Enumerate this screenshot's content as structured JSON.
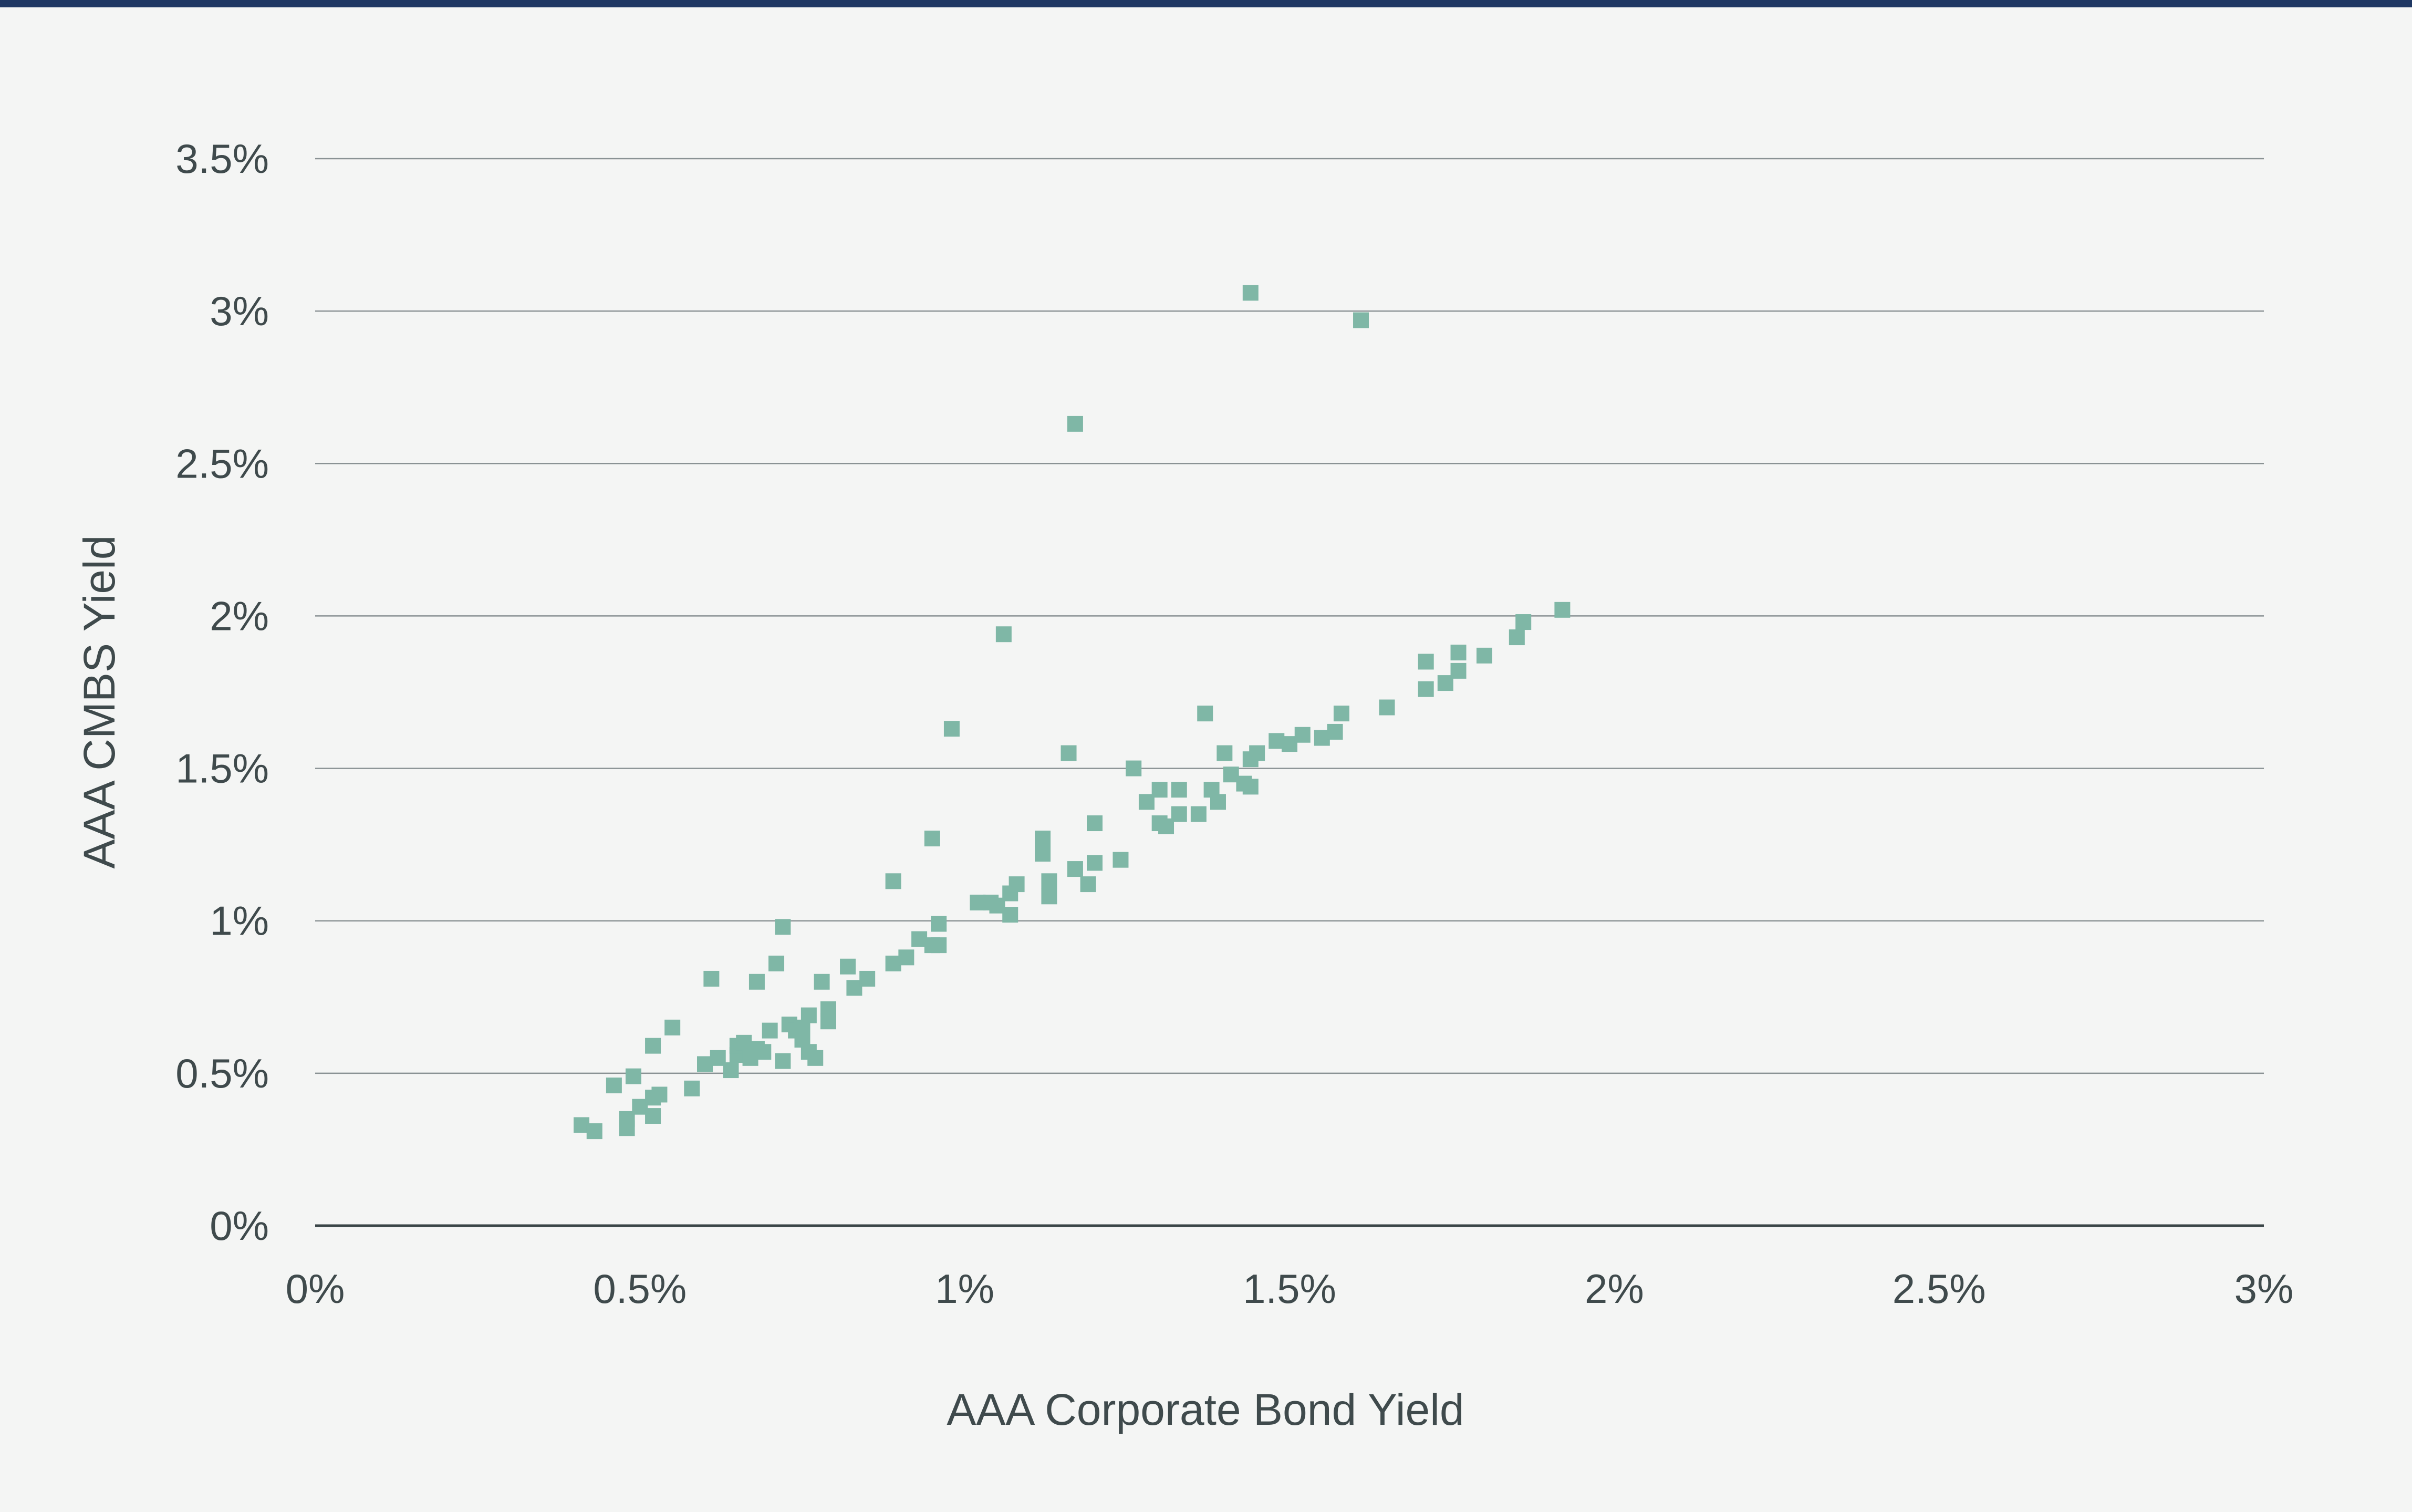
{
  "chart_data": {
    "type": "scatter",
    "title": "",
    "xlabel": "AAA Corporate Bond Yield",
    "ylabel": "AAA CMBS Yield",
    "xlim": [
      0,
      3
    ],
    "ylim": [
      0,
      3.5
    ],
    "x_ticks": [
      0,
      0.5,
      1,
      1.5,
      2,
      2.5,
      3
    ],
    "y_ticks": [
      0,
      0.5,
      1,
      1.5,
      2,
      2.5,
      3,
      3.5
    ],
    "x_tick_labels": [
      "0%",
      "0.5%",
      "1%",
      "1.5%",
      "2%",
      "2.5%",
      "3%"
    ],
    "y_tick_labels": [
      "0%",
      "0.5%",
      "1%",
      "1.5%",
      "2%",
      "2.5%",
      "3%",
      "3.5%"
    ],
    "grid": "horizontal",
    "legend": "none",
    "colors": {
      "marker": "#7fb7a6",
      "top_rule": "#1f3763",
      "gridline": "#8a9294",
      "baseline": "#3a4547",
      "text": "#3f4a4c",
      "background": "#f4f5f4"
    },
    "series": [
      {
        "marker": "square",
        "points": [
          [
            0.41,
            0.33
          ],
          [
            0.43,
            0.31
          ],
          [
            0.46,
            0.46
          ],
          [
            0.48,
            0.32
          ],
          [
            0.48,
            0.35
          ],
          [
            0.49,
            0.49
          ],
          [
            0.5,
            0.39
          ],
          [
            0.52,
            0.36
          ],
          [
            0.52,
            0.42
          ],
          [
            0.53,
            0.43
          ],
          [
            0.52,
            0.59
          ],
          [
            0.55,
            0.65
          ],
          [
            0.58,
            0.45
          ],
          [
            0.6,
            0.53
          ],
          [
            0.61,
            0.81
          ],
          [
            0.62,
            0.55
          ],
          [
            0.64,
            0.51
          ],
          [
            0.65,
            0.56
          ],
          [
            0.65,
            0.59
          ],
          [
            0.66,
            0.6
          ],
          [
            0.67,
            0.55
          ],
          [
            0.68,
            0.58
          ],
          [
            0.68,
            0.8
          ],
          [
            0.69,
            0.57
          ],
          [
            0.7,
            0.64
          ],
          [
            0.71,
            0.86
          ],
          [
            0.72,
            0.54
          ],
          [
            0.72,
            0.98
          ],
          [
            0.73,
            0.66
          ],
          [
            0.74,
            0.64
          ],
          [
            0.75,
            0.61
          ],
          [
            0.75,
            0.65
          ],
          [
            0.76,
            0.57
          ],
          [
            0.76,
            0.69
          ],
          [
            0.77,
            0.55
          ],
          [
            0.78,
            0.8
          ],
          [
            0.79,
            0.71
          ],
          [
            0.79,
            0.67
          ],
          [
            0.82,
            0.85
          ],
          [
            0.83,
            0.78
          ],
          [
            0.85,
            0.81
          ],
          [
            0.89,
            1.13
          ],
          [
            0.89,
            0.86
          ],
          [
            0.91,
            0.88
          ],
          [
            0.93,
            0.94
          ],
          [
            0.95,
            0.92
          ],
          [
            0.95,
            1.27
          ],
          [
            0.96,
            0.92
          ],
          [
            0.96,
            0.99
          ],
          [
            0.98,
            1.63
          ],
          [
            1.02,
            1.06
          ],
          [
            1.04,
            1.06
          ],
          [
            1.05,
            1.05
          ],
          [
            1.06,
            1.94
          ],
          [
            1.07,
            1.02
          ],
          [
            1.07,
            1.09
          ],
          [
            1.08,
            1.12
          ],
          [
            1.12,
            1.27
          ],
          [
            1.12,
            1.22
          ],
          [
            1.13,
            1.08
          ],
          [
            1.13,
            1.13
          ],
          [
            1.16,
            1.55
          ],
          [
            1.17,
            1.17
          ],
          [
            1.17,
            2.63
          ],
          [
            1.19,
            1.12
          ],
          [
            1.2,
            1.19
          ],
          [
            1.2,
            1.32
          ],
          [
            1.24,
            1.2
          ],
          [
            1.26,
            1.5
          ],
          [
            1.28,
            1.39
          ],
          [
            1.3,
            1.32
          ],
          [
            1.3,
            1.43
          ],
          [
            1.31,
            1.31
          ],
          [
            1.33,
            1.35
          ],
          [
            1.33,
            1.43
          ],
          [
            1.36,
            1.35
          ],
          [
            1.37,
            1.68
          ],
          [
            1.38,
            1.43
          ],
          [
            1.39,
            1.39
          ],
          [
            1.4,
            1.55
          ],
          [
            1.41,
            1.48
          ],
          [
            1.43,
            1.45
          ],
          [
            1.44,
            1.53
          ],
          [
            1.44,
            1.44
          ],
          [
            1.45,
            1.55
          ],
          [
            1.44,
            3.06
          ],
          [
            1.48,
            1.59
          ],
          [
            1.5,
            1.58
          ],
          [
            1.52,
            1.61
          ],
          [
            1.55,
            1.6
          ],
          [
            1.57,
            1.62
          ],
          [
            1.58,
            1.68
          ],
          [
            1.61,
            2.97
          ],
          [
            1.65,
            1.7
          ],
          [
            1.71,
            1.85
          ],
          [
            1.71,
            1.76
          ],
          [
            1.74,
            1.78
          ],
          [
            1.76,
            1.82
          ],
          [
            1.76,
            1.88
          ],
          [
            1.8,
            1.87
          ],
          [
            1.85,
            1.93
          ],
          [
            1.86,
            1.98
          ],
          [
            1.92,
            2.02
          ]
        ]
      }
    ]
  }
}
